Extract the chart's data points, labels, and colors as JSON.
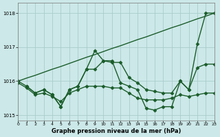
{
  "bg_color": "#cce8e8",
  "grid_color": "#aacccc",
  "line_color": "#1a5c2a",
  "series": [
    {
      "x": [
        0,
        1,
        2,
        3,
        4,
        5,
        6,
        7,
        8,
        9,
        10,
        11,
        12,
        13,
        14,
        15,
        16,
        17,
        18,
        19,
        20,
        21,
        22,
        23
      ],
      "y": [
        1016.0,
        1016.09,
        1016.17,
        1016.26,
        1016.35,
        1016.43,
        1016.52,
        1016.61,
        1016.7,
        1016.78,
        1016.87,
        1016.96,
        1017.04,
        1017.13,
        1017.22,
        1017.3,
        1017.39,
        1017.48,
        1017.57,
        1017.65,
        1017.74,
        1017.83,
        1017.91,
        1018.0
      ],
      "has_markers": false
    },
    {
      "x": [
        0,
        1,
        2,
        3,
        4,
        5,
        6,
        7,
        8,
        9,
        10,
        11,
        12,
        13,
        14,
        15,
        16,
        17,
        18,
        19,
        20,
        21,
        22,
        23
      ],
      "y": [
        1016.0,
        1015.85,
        1015.65,
        1015.75,
        1015.6,
        1015.25,
        1015.75,
        1015.85,
        1016.35,
        1016.9,
        1016.6,
        1016.6,
        1015.95,
        1015.85,
        1015.75,
        1015.2,
        1015.15,
        1015.25,
        1015.25,
        1016.0,
        1015.75,
        1017.1,
        1018.0,
        1018.0
      ],
      "has_markers": true
    },
    {
      "x": [
        0,
        1,
        2,
        3,
        4,
        5,
        6,
        7,
        8,
        9,
        10,
        11,
        12,
        13,
        14,
        15,
        16,
        17,
        18,
        19,
        20,
        21,
        22,
        23
      ],
      "y": [
        1015.95,
        1015.8,
        1015.6,
        1015.65,
        1015.55,
        1015.4,
        1015.65,
        1015.75,
        1015.85,
        1015.85,
        1015.85,
        1015.8,
        1015.8,
        1015.65,
        1015.5,
        1015.45,
        1015.45,
        1015.45,
        1015.5,
        1015.6,
        1015.55,
        1015.6,
        1015.65,
        1015.65
      ],
      "has_markers": true
    },
    {
      "x": [
        1,
        2,
        3,
        4,
        5,
        6,
        7,
        8,
        9,
        10,
        11,
        12,
        13,
        14,
        15,
        16,
        17,
        18,
        19,
        20,
        21,
        22,
        23
      ],
      "y": [
        1015.85,
        1015.65,
        1015.75,
        1015.6,
        1015.25,
        1015.75,
        1015.85,
        1016.35,
        1016.35,
        1016.6,
        1016.55,
        1016.55,
        1016.1,
        1015.95,
        1015.75,
        1015.7,
        1015.65,
        1015.65,
        1016.0,
        1015.75,
        1016.4,
        1016.5,
        1016.5
      ],
      "has_markers": true
    }
  ],
  "xlim": [
    0,
    23
  ],
  "ylim": [
    1014.85,
    1018.3
  ],
  "yticks": [
    1015,
    1016,
    1017,
    1018
  ],
  "xticks": [
    0,
    1,
    2,
    3,
    4,
    5,
    6,
    7,
    8,
    9,
    10,
    11,
    12,
    13,
    14,
    15,
    16,
    17,
    18,
    19,
    20,
    21,
    22,
    23
  ],
  "xlabel": "Graphe pression niveau de la mer (hPa)",
  "marker": "D",
  "markersize": 2.5,
  "linewidth": 1.0
}
